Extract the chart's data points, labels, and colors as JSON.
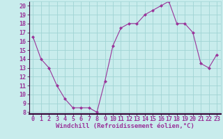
{
  "x": [
    0,
    1,
    2,
    3,
    4,
    5,
    6,
    7,
    8,
    9,
    10,
    11,
    12,
    13,
    14,
    15,
    16,
    17,
    18,
    19,
    20,
    21,
    22,
    23
  ],
  "y": [
    16.5,
    14.0,
    13.0,
    11.0,
    9.5,
    8.5,
    8.5,
    8.5,
    8.0,
    11.5,
    15.5,
    17.5,
    18.0,
    18.0,
    19.0,
    19.5,
    20.0,
    20.5,
    18.0,
    18.0,
    17.0,
    13.5,
    13.0,
    14.5
  ],
  "line_color": "#993399",
  "marker": "D",
  "marker_size": 2.0,
  "bg_color": "#c8ecec",
  "grid_color": "#a0d4d4",
  "xlabel": "Windchill (Refroidissement éolien,°C)",
  "xlim": [
    -0.5,
    23.5
  ],
  "ylim": [
    7.8,
    20.5
  ],
  "yticks": [
    8,
    9,
    10,
    11,
    12,
    13,
    14,
    15,
    16,
    17,
    18,
    19,
    20
  ],
  "xticks": [
    0,
    1,
    2,
    3,
    4,
    5,
    6,
    7,
    8,
    9,
    10,
    11,
    12,
    13,
    14,
    15,
    16,
    17,
    18,
    19,
    20,
    21,
    22,
    23
  ],
  "axis_color": "#330033",
  "font_size_label": 6.5,
  "font_size_tick": 6.0,
  "separator_color": "#330033"
}
